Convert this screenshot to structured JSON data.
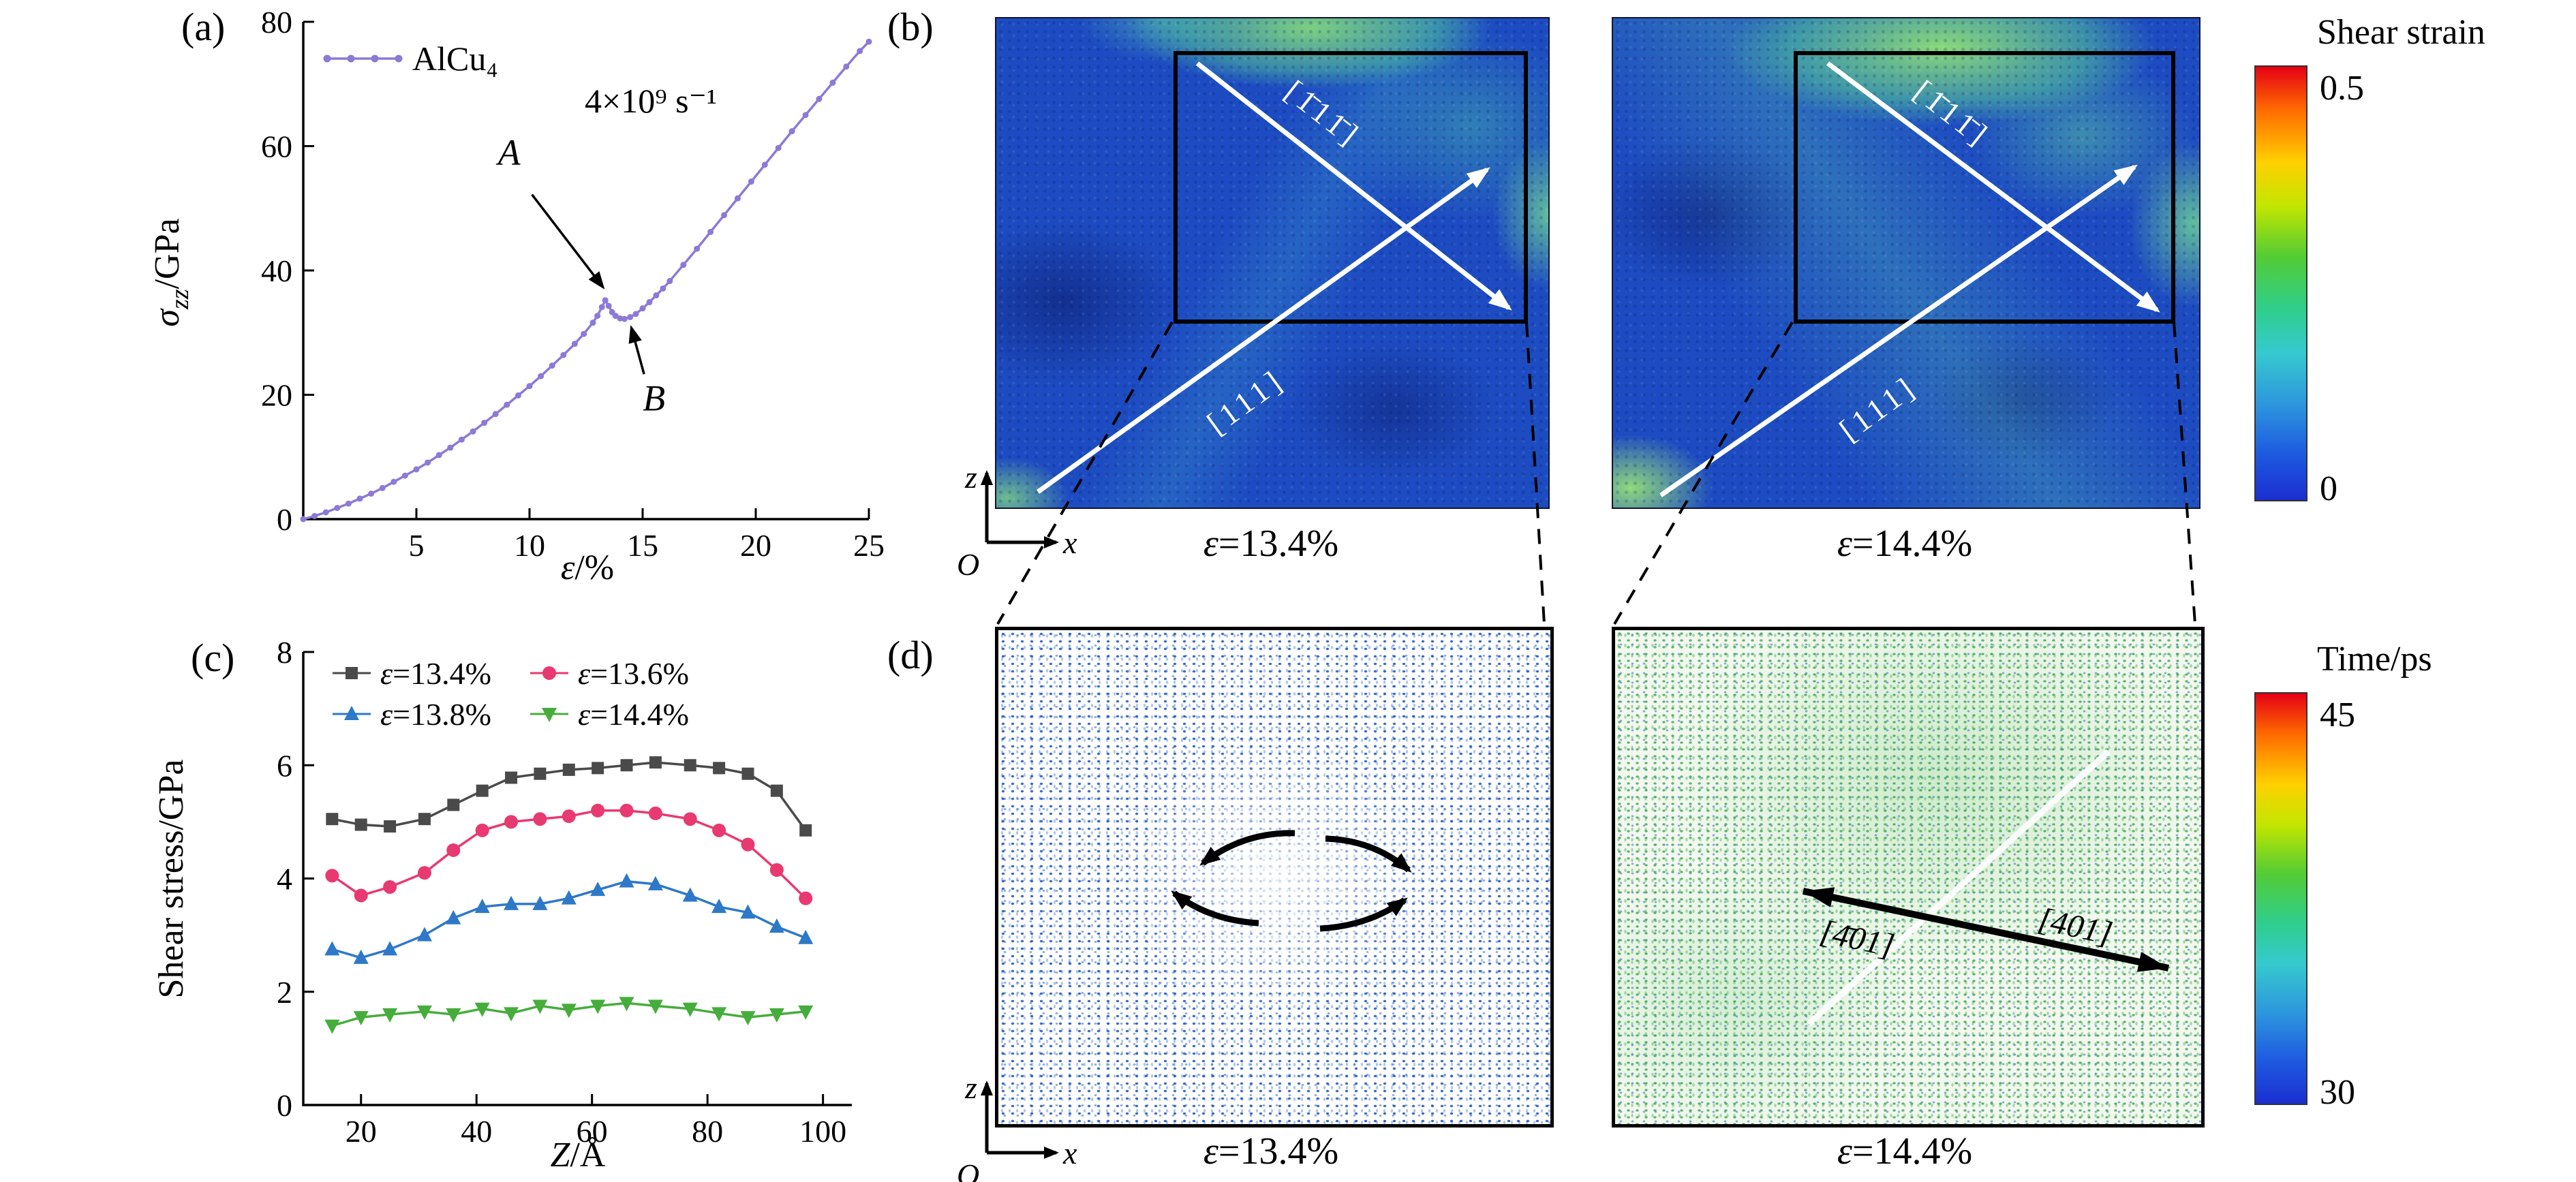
{
  "panels": {
    "a": {
      "label": "(a)"
    },
    "b": {
      "label": "(b)",
      "snapshots": [
        {
          "dir_upper": "[1̄11̄]",
          "dir_lower": "[111]",
          "strain": "ε=13.4%"
        },
        {
          "dir_upper": "[1̄11̄]",
          "dir_lower": "[111]",
          "strain": "ε=14.4%"
        }
      ]
    },
    "c": {
      "label": "(c)"
    },
    "d": {
      "label": "(d)",
      "snapshots": [
        {
          "strain": "ε=13.4%"
        },
        {
          "dir_left": "[4̄01]",
          "dir_right": "[401]",
          "strain": "ε=14.4%"
        }
      ]
    }
  },
  "axes_triad": {
    "z": "z",
    "x": "x",
    "o": "O"
  },
  "colorbars": {
    "shear": {
      "title": "Shear strain",
      "max": "0.5",
      "min": "0"
    },
    "time": {
      "title": "Time/ps",
      "max": "45",
      "min": "30"
    }
  },
  "chart_data": [
    {
      "type": "line",
      "panel": "a",
      "note": "4×10⁹ s⁻¹",
      "xlabel": "ε/%",
      "ylabel": "σzz/GPa",
      "xlabel_parts": [
        {
          "t": "ε",
          "i": 1
        },
        {
          "t": "/%"
        }
      ],
      "ylabel_parts": [
        {
          "t": "σ",
          "i": 1
        },
        {
          "t": "zz",
          "i": 1,
          "s": 1
        },
        {
          "t": "/GPa"
        }
      ],
      "xlim": [
        0,
        25
      ],
      "ylim": [
        0,
        80
      ],
      "xticks": [
        5,
        10,
        15,
        20,
        25
      ],
      "yticks": [
        0,
        20,
        40,
        60,
        80
      ],
      "series": [
        {
          "name": "AlCu₄",
          "color": "#8d79d6",
          "marker": "dot",
          "x": [
            0,
            0.5,
            1,
            1.5,
            2,
            2.5,
            3,
            3.5,
            4,
            4.5,
            5,
            5.5,
            6,
            6.5,
            7,
            7.5,
            8,
            8.5,
            9,
            9.5,
            10,
            10.5,
            11,
            11.5,
            12,
            12.4,
            12.8,
            13,
            13.2,
            13.35,
            13.5,
            13.65,
            13.8,
            14,
            14.2,
            14.45,
            14.7,
            15,
            15.3,
            15.6,
            15.9,
            16.2,
            16.8,
            17.4,
            18,
            18.6,
            19.2,
            19.8,
            20.4,
            21,
            21.6,
            22.2,
            22.8,
            23.4,
            24,
            24.6,
            25
          ],
          "y": [
            0,
            0.5,
            1.1,
            1.8,
            2.5,
            3.3,
            4.1,
            5,
            6,
            7,
            8,
            9.1,
            10.3,
            11.5,
            12.8,
            14.1,
            15.5,
            16.9,
            18.4,
            19.9,
            21.4,
            23,
            24.7,
            26.4,
            28.2,
            29.8,
            31.6,
            32.7,
            34.1,
            35.2,
            34.3,
            33.3,
            32.7,
            32.3,
            32.2,
            32.5,
            33,
            33.9,
            34.9,
            36,
            37.1,
            38.3,
            40.9,
            43.5,
            46.2,
            48.9,
            51.6,
            54.3,
            57,
            59.7,
            62.4,
            65,
            67.6,
            70.2,
            72.8,
            75.3,
            76.8
          ]
        }
      ],
      "annotations": [
        {
          "text": "A",
          "text_xy": [
            9.1,
            57
          ],
          "tip_xy": [
            13.25,
            37.3
          ]
        },
        {
          "text": "B",
          "text_xy": [
            15.5,
            17.5
          ],
          "tip_xy": [
            14.5,
            30.8
          ]
        }
      ]
    },
    {
      "type": "line",
      "panel": "c",
      "xlabel": "Z/Å",
      "ylabel": "Shear stress/GPa",
      "xlabel_parts": [
        {
          "t": "Z",
          "i": 1
        },
        {
          "t": "/Å"
        }
      ],
      "ylabel_parts": [
        {
          "t": "Shear stress/GPa"
        }
      ],
      "xlim": [
        10,
        105
      ],
      "ylim": [
        0,
        8
      ],
      "xticks": [
        20,
        40,
        60,
        80,
        100
      ],
      "yticks": [
        0,
        2,
        4,
        6,
        8
      ],
      "x_shared": [
        15,
        20,
        25,
        31,
        36,
        41,
        46,
        51,
        56,
        61,
        66,
        71,
        77,
        82,
        87,
        92,
        97
      ],
      "series": [
        {
          "name": "ε=13.4%",
          "color": "#4a4a4a",
          "marker": "square",
          "values": [
            5.05,
            4.95,
            4.92,
            5.05,
            5.3,
            5.55,
            5.78,
            5.85,
            5.92,
            5.95,
            6.0,
            6.05,
            6.0,
            5.95,
            5.85,
            5.55,
            4.85
          ]
        },
        {
          "name": "ε=13.6%",
          "color": "#e83a70",
          "marker": "circle",
          "values": [
            4.05,
            3.7,
            3.85,
            4.1,
            4.5,
            4.85,
            5.0,
            5.05,
            5.1,
            5.2,
            5.2,
            5.15,
            5.05,
            4.85,
            4.6,
            4.15,
            3.65
          ]
        },
        {
          "name": "ε=13.8%",
          "color": "#2e78c8",
          "marker": "triangle-up",
          "values": [
            2.75,
            2.6,
            2.75,
            3.0,
            3.3,
            3.5,
            3.55,
            3.55,
            3.65,
            3.8,
            3.95,
            3.9,
            3.7,
            3.5,
            3.4,
            3.15,
            2.95
          ]
        },
        {
          "name": "ε=14.4%",
          "color": "#46ad3c",
          "marker": "triangle-down",
          "values": [
            1.4,
            1.55,
            1.6,
            1.65,
            1.6,
            1.7,
            1.62,
            1.75,
            1.68,
            1.75,
            1.8,
            1.75,
            1.7,
            1.62,
            1.55,
            1.6,
            1.65
          ]
        }
      ]
    }
  ]
}
